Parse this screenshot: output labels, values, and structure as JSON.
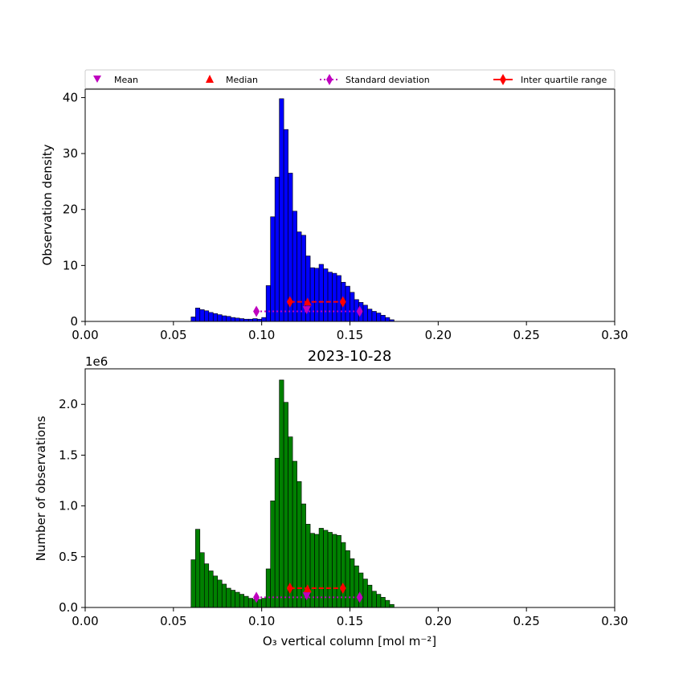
{
  "colors": {
    "top_bars": "#0000ff",
    "bottom_bars": "#008000",
    "mean": "#bf00bf",
    "median": "#ff0000",
    "std": "#bf00bf",
    "iqr": "#ff0000"
  },
  "legend": {
    "mean": "Mean",
    "median": "Median",
    "std": "Standard deviation",
    "iqr": "Inter quartile range"
  },
  "chart_data": [
    {
      "type": "bar",
      "panel": "top",
      "title": "",
      "xlabel": "",
      "ylabel": "Observation density",
      "xlim": [
        0,
        0.3
      ],
      "ylim": [
        0,
        41.5
      ],
      "xticks": [
        "0.00",
        "0.05",
        "0.10",
        "0.15",
        "0.20",
        "0.25",
        "0.30"
      ],
      "yticks": [
        "0",
        "10",
        "20",
        "30",
        "40"
      ],
      "bin_start": 0.06,
      "bin_width": 0.0025,
      "values": [
        0.8,
        2.4,
        2.1,
        1.9,
        1.6,
        1.4,
        1.2,
        1.0,
        0.9,
        0.7,
        0.6,
        0.5,
        0.4,
        0.4,
        0.5,
        0.4,
        0.7,
        6.4,
        18.7,
        25.8,
        39.8,
        34.3,
        26.5,
        19.7,
        16.0,
        15.4,
        11.7,
        9.6,
        9.5,
        10.2,
        9.4,
        8.8,
        8.6,
        8.2,
        7.0,
        6.3,
        5.2,
        3.9,
        3.4,
        2.9,
        2.2,
        1.8,
        1.5,
        1.1,
        0.7,
        0.3
      ],
      "stats": {
        "mean": [
          0.1255,
          2.0
        ],
        "median": [
          0.126,
          3.4
        ],
        "std": [
          [
            0.097,
            1.8
          ],
          [
            0.1555,
            1.8
          ]
        ],
        "iqr": [
          [
            0.116,
            3.5
          ],
          [
            0.146,
            3.5
          ]
        ]
      }
    },
    {
      "type": "bar",
      "panel": "bottom",
      "title": "2023-10-28",
      "xlabel": "O₃ vertical column [mol m⁻²]",
      "ylabel": "Number of observations",
      "offset_label": "1e6",
      "xlim": [
        0,
        0.3
      ],
      "ylim": [
        0,
        2.35
      ],
      "xticks": [
        "0.00",
        "0.05",
        "0.10",
        "0.15",
        "0.20",
        "0.25",
        "0.30"
      ],
      "yticks": [
        "0.0",
        "0.5",
        "1.0",
        "1.5",
        "2.0"
      ],
      "bin_start": 0.06,
      "bin_width": 0.0025,
      "values": [
        0.47,
        0.77,
        0.54,
        0.43,
        0.36,
        0.31,
        0.27,
        0.23,
        0.19,
        0.17,
        0.15,
        0.13,
        0.11,
        0.09,
        0.08,
        0.08,
        0.09,
        0.38,
        1.05,
        1.47,
        2.24,
        2.02,
        1.68,
        1.44,
        1.24,
        1.02,
        0.82,
        0.73,
        0.72,
        0.78,
        0.76,
        0.74,
        0.72,
        0.71,
        0.64,
        0.56,
        0.48,
        0.41,
        0.34,
        0.28,
        0.22,
        0.16,
        0.13,
        0.1,
        0.07,
        0.03
      ],
      "stats": {
        "mean": [
          0.1255,
          0.11
        ],
        "median": [
          0.126,
          0.18
        ],
        "std": [
          [
            0.097,
            0.1
          ],
          [
            0.1555,
            0.1
          ]
        ],
        "iqr": [
          [
            0.116,
            0.19
          ],
          [
            0.146,
            0.19
          ]
        ]
      }
    }
  ]
}
